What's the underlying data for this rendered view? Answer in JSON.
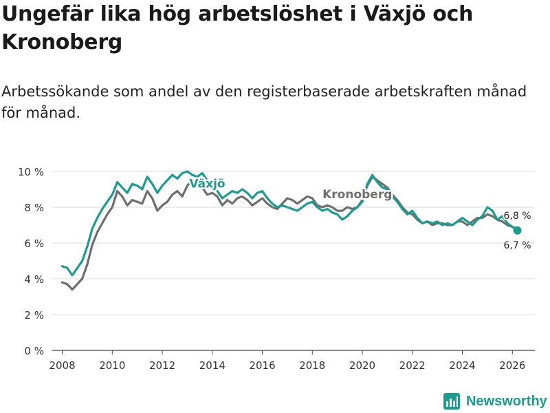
{
  "chart_data": {
    "type": "line",
    "title": "Ungefär lika hög arbetslöshet i Växjö och Kronoberg",
    "subtitle": "Arbetssökande som andel av den registerbaserade arbetskraften månad för månad.",
    "xlabel": "",
    "ylabel": "",
    "xlim": [
      2007.6,
      2026.9
    ],
    "ylim": [
      0,
      10
    ],
    "grid": true,
    "x_ticks": [
      2008,
      2010,
      2012,
      2014,
      2016,
      2018,
      2020,
      2022,
      2024,
      2026
    ],
    "x_tick_labels": [
      "2008",
      "2010",
      "2012",
      "2014",
      "2016",
      "2018",
      "2020",
      "2022",
      "2024",
      "2026"
    ],
    "y_ticks": [
      0,
      2,
      4,
      6,
      8,
      10
    ],
    "y_tick_labels": [
      "0 %",
      "2 %",
      "4 %",
      "6 %",
      "8 %",
      "10 %"
    ],
    "series": [
      {
        "name": "Kronoberg",
        "color": "#6e6e6e",
        "label_at": [
          2019.8,
          8.5
        ],
        "end_label": "6,8 %",
        "points": [
          [
            2008.0,
            3.8
          ],
          [
            2008.2,
            3.7
          ],
          [
            2008.4,
            3.4
          ],
          [
            2008.6,
            3.7
          ],
          [
            2008.8,
            4.0
          ],
          [
            2009.0,
            4.8
          ],
          [
            2009.2,
            5.9
          ],
          [
            2009.4,
            6.6
          ],
          [
            2009.6,
            7.1
          ],
          [
            2009.8,
            7.6
          ],
          [
            2010.0,
            8.0
          ],
          [
            2010.2,
            8.9
          ],
          [
            2010.4,
            8.6
          ],
          [
            2010.6,
            8.1
          ],
          [
            2010.8,
            8.4
          ],
          [
            2011.0,
            8.3
          ],
          [
            2011.2,
            8.2
          ],
          [
            2011.4,
            8.9
          ],
          [
            2011.6,
            8.5
          ],
          [
            2011.8,
            7.8
          ],
          [
            2012.0,
            8.1
          ],
          [
            2012.2,
            8.3
          ],
          [
            2012.4,
            8.7
          ],
          [
            2012.6,
            8.9
          ],
          [
            2012.8,
            8.6
          ],
          [
            2013.0,
            9.2
          ],
          [
            2013.2,
            9.5
          ],
          [
            2013.4,
            9.4
          ],
          [
            2013.6,
            9.1
          ],
          [
            2013.8,
            8.7
          ],
          [
            2014.0,
            8.8
          ],
          [
            2014.2,
            8.6
          ],
          [
            2014.4,
            8.1
          ],
          [
            2014.6,
            8.4
          ],
          [
            2014.8,
            8.2
          ],
          [
            2015.0,
            8.5
          ],
          [
            2015.2,
            8.6
          ],
          [
            2015.4,
            8.4
          ],
          [
            2015.6,
            8.1
          ],
          [
            2015.8,
            8.3
          ],
          [
            2016.0,
            8.5
          ],
          [
            2016.2,
            8.2
          ],
          [
            2016.4,
            8.0
          ],
          [
            2016.6,
            7.9
          ],
          [
            2016.8,
            8.2
          ],
          [
            2017.0,
            8.5
          ],
          [
            2017.2,
            8.4
          ],
          [
            2017.4,
            8.2
          ],
          [
            2017.6,
            8.4
          ],
          [
            2017.8,
            8.6
          ],
          [
            2018.0,
            8.5
          ],
          [
            2018.2,
            8.1
          ],
          [
            2018.4,
            8.0
          ],
          [
            2018.6,
            8.1
          ],
          [
            2018.8,
            8.0
          ],
          [
            2019.0,
            7.8
          ],
          [
            2019.2,
            7.8
          ],
          [
            2019.4,
            8.0
          ],
          [
            2019.6,
            7.9
          ],
          [
            2019.8,
            8.0
          ],
          [
            2020.0,
            8.4
          ],
          [
            2020.2,
            9.2
          ],
          [
            2020.4,
            9.7
          ],
          [
            2020.6,
            9.5
          ],
          [
            2020.8,
            9.3
          ],
          [
            2021.0,
            9.1
          ],
          [
            2021.2,
            8.7
          ],
          [
            2021.4,
            8.4
          ],
          [
            2021.6,
            8.0
          ],
          [
            2021.8,
            7.7
          ],
          [
            2022.0,
            7.6
          ],
          [
            2022.2,
            7.3
          ],
          [
            2022.4,
            7.1
          ],
          [
            2022.6,
            7.2
          ],
          [
            2022.8,
            7.0
          ],
          [
            2023.0,
            7.1
          ],
          [
            2023.2,
            7.1
          ],
          [
            2023.4,
            7.0
          ],
          [
            2023.6,
            7.0
          ],
          [
            2023.8,
            7.2
          ],
          [
            2024.0,
            7.2
          ],
          [
            2024.2,
            7.0
          ],
          [
            2024.4,
            7.2
          ],
          [
            2024.6,
            7.4
          ],
          [
            2024.8,
            7.4
          ],
          [
            2025.0,
            7.6
          ],
          [
            2025.2,
            7.5
          ],
          [
            2025.4,
            7.3
          ],
          [
            2025.6,
            7.2
          ],
          [
            2025.8,
            7.0
          ],
          [
            2026.0,
            6.9
          ],
          [
            2026.2,
            6.8
          ]
        ]
      },
      {
        "name": "Växjö",
        "color": "#1a9d8f",
        "label_at": [
          2013.8,
          9.1
        ],
        "end_label": "6,7 %",
        "points": [
          [
            2008.0,
            4.7
          ],
          [
            2008.2,
            4.6
          ],
          [
            2008.4,
            4.2
          ],
          [
            2008.6,
            4.6
          ],
          [
            2008.8,
            5.0
          ],
          [
            2009.0,
            5.8
          ],
          [
            2009.2,
            6.8
          ],
          [
            2009.4,
            7.4
          ],
          [
            2009.6,
            7.9
          ],
          [
            2009.8,
            8.3
          ],
          [
            2010.0,
            8.7
          ],
          [
            2010.2,
            9.4
          ],
          [
            2010.4,
            9.1
          ],
          [
            2010.6,
            8.8
          ],
          [
            2010.8,
            9.3
          ],
          [
            2011.0,
            9.2
          ],
          [
            2011.2,
            9.0
          ],
          [
            2011.4,
            9.7
          ],
          [
            2011.6,
            9.3
          ],
          [
            2011.8,
            8.8
          ],
          [
            2012.0,
            9.2
          ],
          [
            2012.2,
            9.5
          ],
          [
            2012.4,
            9.8
          ],
          [
            2012.6,
            9.6
          ],
          [
            2012.8,
            9.9
          ],
          [
            2013.0,
            10.0
          ],
          [
            2013.2,
            9.8
          ],
          [
            2013.4,
            9.7
          ],
          [
            2013.6,
            9.9
          ],
          [
            2013.8,
            9.5
          ],
          [
            2014.0,
            9.2
          ],
          [
            2014.2,
            8.9
          ],
          [
            2014.4,
            8.5
          ],
          [
            2014.6,
            8.7
          ],
          [
            2014.8,
            8.9
          ],
          [
            2015.0,
            8.8
          ],
          [
            2015.2,
            9.0
          ],
          [
            2015.4,
            8.8
          ],
          [
            2015.6,
            8.5
          ],
          [
            2015.8,
            8.8
          ],
          [
            2016.0,
            8.9
          ],
          [
            2016.2,
            8.5
          ],
          [
            2016.4,
            8.2
          ],
          [
            2016.6,
            8.0
          ],
          [
            2016.8,
            8.1
          ],
          [
            2017.0,
            8.0
          ],
          [
            2017.2,
            7.9
          ],
          [
            2017.4,
            7.8
          ],
          [
            2017.6,
            8.0
          ],
          [
            2017.8,
            8.2
          ],
          [
            2018.0,
            8.3
          ],
          [
            2018.2,
            8.0
          ],
          [
            2018.4,
            7.8
          ],
          [
            2018.6,
            7.9
          ],
          [
            2018.8,
            7.7
          ],
          [
            2019.0,
            7.6
          ],
          [
            2019.2,
            7.3
          ],
          [
            2019.4,
            7.5
          ],
          [
            2019.6,
            7.8
          ],
          [
            2019.8,
            8.0
          ],
          [
            2020.0,
            8.3
          ],
          [
            2020.2,
            9.3
          ],
          [
            2020.4,
            9.8
          ],
          [
            2020.6,
            9.4
          ],
          [
            2020.8,
            9.1
          ],
          [
            2021.0,
            9.0
          ],
          [
            2021.2,
            8.6
          ],
          [
            2021.4,
            8.3
          ],
          [
            2021.6,
            7.9
          ],
          [
            2021.8,
            7.6
          ],
          [
            2022.0,
            7.8
          ],
          [
            2022.2,
            7.4
          ],
          [
            2022.4,
            7.1
          ],
          [
            2022.6,
            7.2
          ],
          [
            2022.8,
            7.1
          ],
          [
            2023.0,
            7.2
          ],
          [
            2023.2,
            7.0
          ],
          [
            2023.4,
            7.1
          ],
          [
            2023.6,
            7.0
          ],
          [
            2023.8,
            7.2
          ],
          [
            2024.0,
            7.4
          ],
          [
            2024.2,
            7.2
          ],
          [
            2024.4,
            7.0
          ],
          [
            2024.6,
            7.3
          ],
          [
            2024.8,
            7.5
          ],
          [
            2025.0,
            8.0
          ],
          [
            2025.2,
            7.8
          ],
          [
            2025.4,
            7.3
          ],
          [
            2025.6,
            7.5
          ],
          [
            2025.8,
            7.1
          ],
          [
            2026.0,
            6.9
          ],
          [
            2026.2,
            6.7
          ]
        ]
      }
    ]
  },
  "brand": {
    "name": "Newsworthy"
  }
}
